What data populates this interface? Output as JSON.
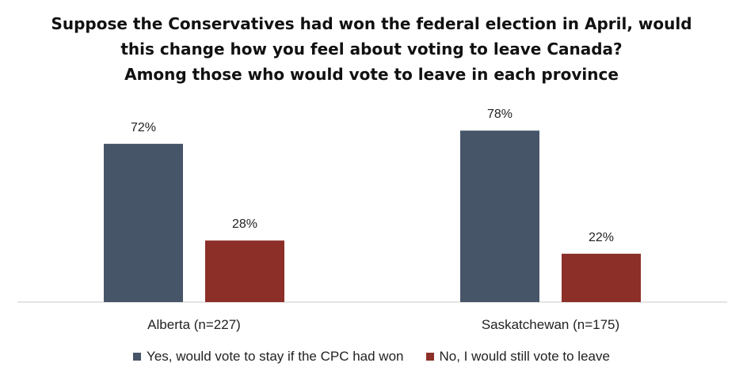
{
  "chart_data": {
    "type": "bar",
    "title_lines": [
      "Suppose the Conservatives had won the federal election in April, would",
      "this change how you feel about voting to leave Canada?",
      "Among those who would vote to leave in each province"
    ],
    "categories": [
      "Alberta (n=227)",
      "Saskatchewan (n=175)"
    ],
    "series": [
      {
        "name": "Yes, would vote to stay if the CPC had won",
        "values": [
          72,
          78
        ],
        "labels": [
          "72%",
          "78%"
        ],
        "color": "#475569"
      },
      {
        "name": "No, I would still vote to leave",
        "values": [
          28,
          22
        ],
        "labels": [
          "28%",
          "22%"
        ],
        "color": "#8b2f28"
      }
    ],
    "xlabel": "",
    "ylabel": "",
    "ylim": [
      0,
      100
    ],
    "grid": false,
    "legend_position": "bottom"
  }
}
